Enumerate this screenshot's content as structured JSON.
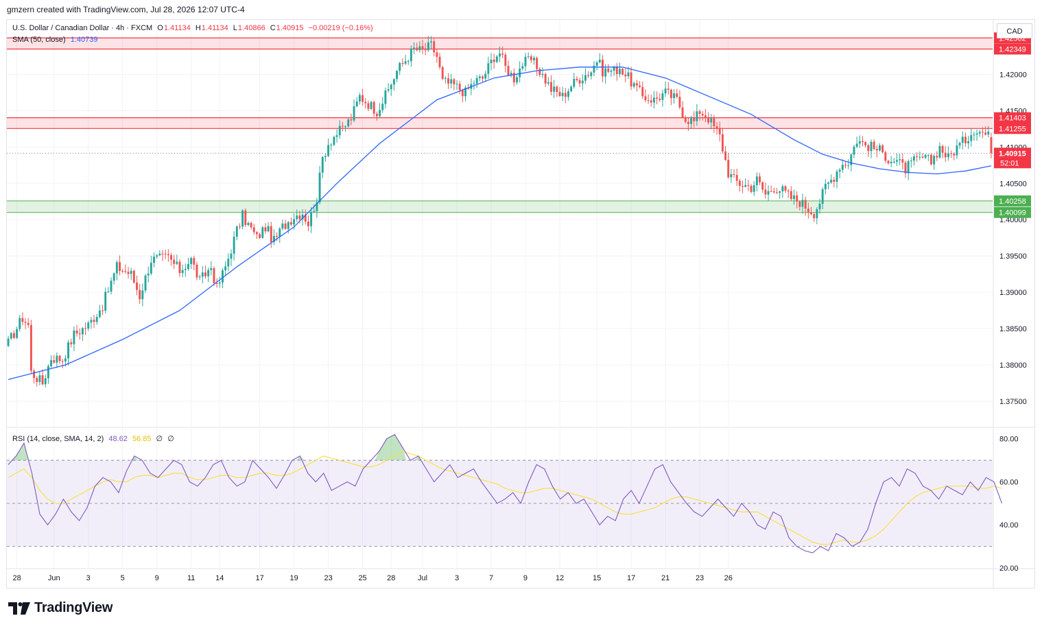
{
  "credit": "gmzern created with TradingView.com, Jul 28, 2026 12:07 UTC-4",
  "currency": "CAD",
  "brand": "TradingView",
  "header": {
    "symbol": "U.S. Dollar / Canadian Dollar · 4h · FXCM",
    "o_label": "O",
    "o": "1.41134",
    "h_label": "H",
    "h": "1.41134",
    "l_label": "L",
    "l": "1.40866",
    "c_label": "C",
    "c": "1.40915",
    "change": "−0.00219 (−0.16%)",
    "sma_label": "SMA (50, close)",
    "sma_value": "1.40739"
  },
  "rsi_legend": {
    "label": "RSI (14, close, SMA, 14, 2)",
    "rsi": "48.62",
    "rsi_ma": "56.85",
    "extra1": "∅",
    "extra2": "∅"
  },
  "colors": {
    "up": "#26a69a",
    "down": "#ef5350",
    "sma": "#2962ff",
    "rsi": "#7e57c2",
    "rsi_ma": "#f7e04b",
    "resistance": "#f23645",
    "support": "#4caf50",
    "price_label": "#f23645"
  },
  "chart_data": [
    {
      "type": "candlestick",
      "title": "U.S. Dollar / Canadian Dollar · 4h · FXCM",
      "ylim": [
        1.3715,
        1.4275
      ],
      "y_ticks": [
        "1.42000",
        "1.41500",
        "1.41000",
        "1.40500",
        "1.40000",
        "1.39500",
        "1.39000",
        "1.38500",
        "1.38000",
        "1.37500"
      ],
      "x_ticks": [
        "28",
        "Jun",
        "3",
        "5",
        "9",
        "11",
        "14",
        "17",
        "19",
        "23",
        "25",
        "28",
        "Jul",
        "3",
        "7",
        "9",
        "12",
        "15",
        "17",
        "21",
        "23",
        "26"
      ],
      "close_path": [
        [
          0,
          1.383
        ],
        [
          5,
          1.3865
        ],
        [
          7,
          1.3855
        ],
        [
          8,
          1.379
        ],
        [
          12,
          1.3775
        ],
        [
          15,
          1.381
        ],
        [
          19,
          1.3808
        ],
        [
          23,
          1.3842
        ],
        [
          28,
          1.3855
        ],
        [
          33,
          1.3882
        ],
        [
          38,
          1.3935
        ],
        [
          43,
          1.3925
        ],
        [
          46,
          1.3895
        ],
        [
          50,
          1.3945
        ],
        [
          56,
          1.3948
        ],
        [
          60,
          1.393
        ],
        [
          64,
          1.3945
        ],
        [
          67,
          1.3915
        ],
        [
          71,
          1.3935
        ],
        [
          73,
          1.3905
        ],
        [
          76,
          1.3935
        ],
        [
          80,
          1.3985
        ],
        [
          82,
          1.4005
        ],
        [
          87,
          1.3975
        ],
        [
          90,
          1.399
        ],
        [
          93,
          1.397
        ],
        [
          96,
          1.399
        ],
        [
          100,
          1.4005
        ],
        [
          103,
          1.401
        ],
        [
          105,
          1.3995
        ],
        [
          108,
          1.403
        ],
        [
          110,
          1.4085
        ],
        [
          112,
          1.4105
        ],
        [
          114,
          1.4115
        ],
        [
          117,
          1.4125
        ],
        [
          120,
          1.414
        ],
        [
          123,
          1.417
        ],
        [
          126,
          1.416
        ],
        [
          129,
          1.415
        ],
        [
          132,
          1.417
        ],
        [
          136,
          1.4205
        ],
        [
          138,
          1.4215
        ],
        [
          140,
          1.4225
        ],
        [
          142,
          1.4235
        ],
        [
          145,
          1.4232
        ],
        [
          148,
          1.424
        ],
        [
          150,
          1.4225
        ],
        [
          152,
          1.419
        ],
        [
          156,
          1.4185
        ],
        [
          160,
          1.4175
        ],
        [
          163,
          1.419
        ],
        [
          166,
          1.4195
        ],
        [
          170,
          1.4225
        ],
        [
          172,
          1.423
        ],
        [
          174,
          1.421
        ],
        [
          177,
          1.4195
        ],
        [
          180,
          1.4215
        ],
        [
          183,
          1.422
        ],
        [
          186,
          1.4205
        ],
        [
          190,
          1.418
        ],
        [
          194,
          1.417
        ],
        [
          197,
          1.4185
        ],
        [
          200,
          1.4195
        ],
        [
          204,
          1.4205
        ],
        [
          206,
          1.422
        ],
        [
          208,
          1.4205
        ],
        [
          212,
          1.4205
        ],
        [
          214,
          1.421
        ],
        [
          218,
          1.419
        ],
        [
          222,
          1.417
        ],
        [
          226,
          1.4165
        ],
        [
          230,
          1.4175
        ],
        [
          234,
          1.4165
        ],
        [
          237,
          1.414
        ],
        [
          240,
          1.4135
        ],
        [
          242,
          1.415
        ],
        [
          245,
          1.414
        ],
        [
          249,
          1.4115
        ],
        [
          252,
          1.4065
        ],
        [
          254,
          1.4055
        ],
        [
          256,
          1.405
        ],
        [
          260,
          1.4045
        ],
        [
          262,
          1.4055
        ],
        [
          265,
          1.4035
        ],
        [
          268,
          1.4045
        ],
        [
          271,
          1.404
        ],
        [
          274,
          1.403
        ],
        [
          277,
          1.4025
        ],
        [
          280,
          1.4015
        ],
        [
          282,
          1.401
        ],
        [
          284,
          1.4025
        ],
        [
          286,
          1.4045
        ],
        [
          289,
          1.406
        ],
        [
          291,
          1.4075
        ],
        [
          294,
          1.408
        ],
        [
          297,
          1.411
        ],
        [
          299,
          1.4105
        ],
        [
          302,
          1.41
        ],
        [
          305,
          1.4095
        ],
        [
          308,
          1.4085
        ],
        [
          311,
          1.408
        ],
        [
          314,
          1.407
        ],
        [
          317,
          1.408
        ],
        [
          320,
          1.4085
        ],
        [
          323,
          1.408
        ],
        [
          326,
          1.41
        ],
        [
          329,
          1.4085
        ],
        [
          332,
          1.41
        ],
        [
          335,
          1.411
        ],
        [
          338,
          1.4125
        ],
        [
          341,
          1.412
        ],
        [
          343,
          1.4115
        ],
        [
          344,
          1.4091
        ]
      ],
      "last_price": "1.40915",
      "countdown": "52:01",
      "resistance_zones": [
        {
          "high": "1.42502",
          "low": "1.42349"
        },
        {
          "high": "1.41403",
          "low": "1.41255"
        }
      ],
      "support_zones": [
        {
          "high": "1.40258",
          "low": "1.40099"
        }
      ],
      "series": [
        {
          "name": "SMA (50, close)",
          "points": [
            [
              0,
              1.378
            ],
            [
              20,
              1.38
            ],
            [
              40,
              1.3835
            ],
            [
              60,
              1.3875
            ],
            [
              80,
              1.3935
            ],
            [
              100,
              1.399
            ],
            [
              115,
              1.405
            ],
            [
              130,
              1.4105
            ],
            [
              150,
              1.4165
            ],
            [
              170,
              1.4195
            ],
            [
              185,
              1.4205
            ],
            [
              200,
              1.421
            ],
            [
              215,
              1.421
            ],
            [
              230,
              1.4195
            ],
            [
              245,
              1.417
            ],
            [
              260,
              1.4145
            ],
            [
              275,
              1.411
            ],
            [
              285,
              1.409
            ],
            [
              295,
              1.4078
            ],
            [
              305,
              1.407
            ],
            [
              315,
              1.4065
            ],
            [
              325,
              1.4063
            ],
            [
              335,
              1.4067
            ],
            [
              344,
              1.4074
            ]
          ]
        }
      ]
    },
    {
      "type": "line",
      "title": "RSI (14, close, SMA, 14, 2)",
      "ylim": [
        20,
        85
      ],
      "y_ticks": [
        "80.00",
        "60.00",
        "40.00",
        "20.00"
      ],
      "band": [
        30,
        70
      ],
      "midline": 50,
      "series": [
        {
          "name": "RSI",
          "values": [
            68,
            72,
            78,
            64,
            45,
            40,
            45,
            52,
            46,
            42,
            48,
            58,
            62,
            60,
            55,
            65,
            72,
            70,
            64,
            62,
            66,
            70,
            68,
            60,
            58,
            62,
            68,
            70,
            62,
            58,
            60,
            70,
            66,
            62,
            57,
            63,
            70,
            72,
            64,
            60,
            64,
            56,
            58,
            60,
            58,
            66,
            70,
            74,
            80,
            82,
            76,
            70,
            72,
            66,
            60,
            64,
            68,
            62,
            64,
            66,
            60,
            55,
            50,
            52,
            55,
            50,
            60,
            68,
            66,
            58,
            52,
            55,
            50,
            52,
            46,
            40,
            44,
            42,
            52,
            56,
            50,
            58,
            66,
            68,
            60,
            55,
            50,
            46,
            44,
            48,
            52,
            48,
            44,
            50,
            46,
            40,
            38,
            46,
            44,
            34,
            30,
            28,
            27,
            30,
            28,
            36,
            34,
            30,
            32,
            38,
            50,
            60,
            62,
            58,
            66,
            64,
            58,
            56,
            52,
            58,
            56,
            54,
            60,
            56,
            62,
            60,
            50
          ],
          "x_start": 0,
          "x_step": 2.76
        },
        {
          "name": "RSI-based MA",
          "values": [
            62,
            64,
            66,
            62,
            56,
            52,
            50,
            50,
            52,
            54,
            56,
            58,
            60,
            61,
            60,
            60,
            62,
            63,
            63,
            62,
            63,
            64,
            64,
            62,
            61,
            61,
            62,
            63,
            63,
            62,
            62,
            63,
            64,
            64,
            63,
            63,
            64,
            66,
            68,
            70,
            72,
            71,
            70,
            69,
            68,
            67,
            67,
            68,
            70,
            72,
            74,
            73,
            72,
            70,
            68,
            66,
            65,
            64,
            63,
            62,
            61,
            60,
            59,
            57,
            56,
            55,
            55,
            56,
            57,
            57,
            56,
            55,
            54,
            53,
            52,
            50,
            48,
            46,
            45,
            45,
            46,
            47,
            48,
            50,
            52,
            53,
            53,
            52,
            51,
            50,
            49,
            48,
            47,
            46,
            46,
            46,
            44,
            42,
            40,
            38,
            36,
            34,
            32,
            31,
            31,
            32,
            33,
            32,
            32,
            33,
            35,
            38,
            42,
            46,
            50,
            53,
            55,
            56,
            57,
            58,
            58,
            58,
            58,
            57,
            57,
            58,
            57
          ],
          "x_start": 0,
          "x_step": 2.76
        }
      ]
    }
  ]
}
